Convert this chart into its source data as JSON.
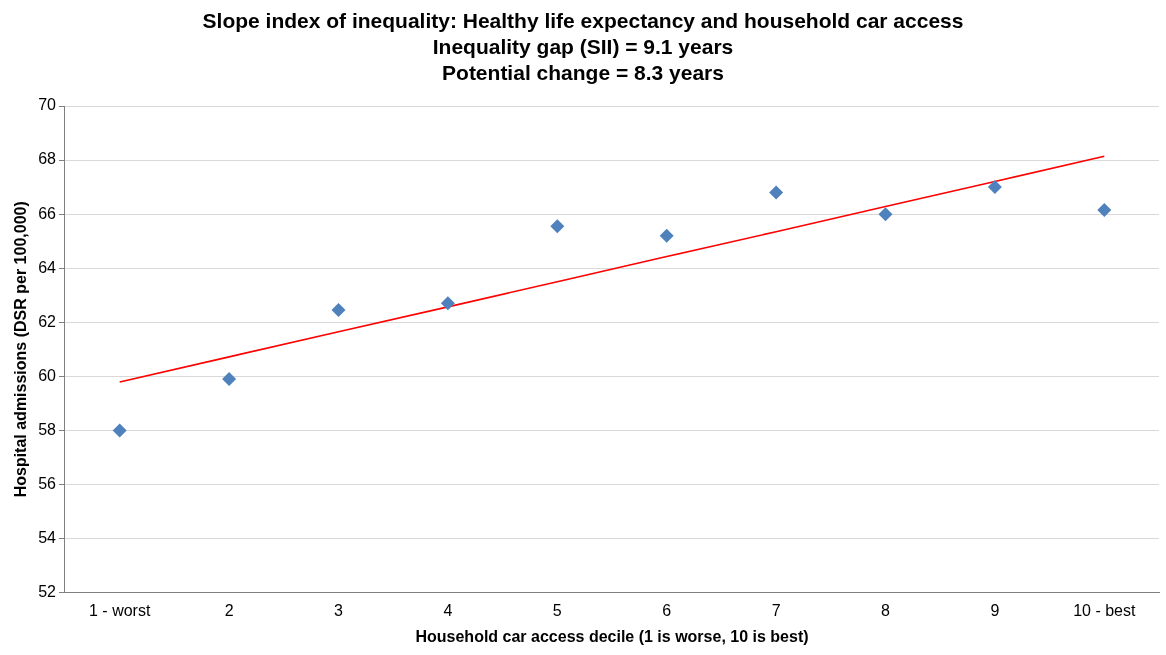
{
  "chart_data": {
    "type": "scatter",
    "title": "Slope index of inequality: Healthy life expectancy and household car access",
    "subtitle": "Inequality gap (SII) = 9.1 years\nPotential change = 8.3 years",
    "xlabel": "Household car access decile (1 is worse, 10 is best)",
    "ylabel": "Hospital admissions (DSR per 100,000)",
    "categories": [
      "1 - worst",
      "2",
      "3",
      "4",
      "5",
      "6",
      "7",
      "8",
      "9",
      "10 - best"
    ],
    "series": [
      {
        "color": "#4f81bd",
        "marker": "diamond",
        "values": [
          58.0,
          59.9,
          62.45,
          62.7,
          65.55,
          65.2,
          66.8,
          66.0,
          67.0,
          66.15
        ]
      },
      {
        "type": "line",
        "color": "#ff0000",
        "marker": "none",
        "values": [
          59.79,
          60.72,
          61.65,
          62.57,
          63.5,
          64.43,
          65.35,
          66.28,
          67.21,
          68.14
        ]
      }
    ],
    "ylim": [
      52,
      70
    ],
    "yticks": [
      52,
      54,
      56,
      58,
      60,
      62,
      64,
      66,
      68,
      70
    ],
    "grid": "y",
    "legend": false
  }
}
